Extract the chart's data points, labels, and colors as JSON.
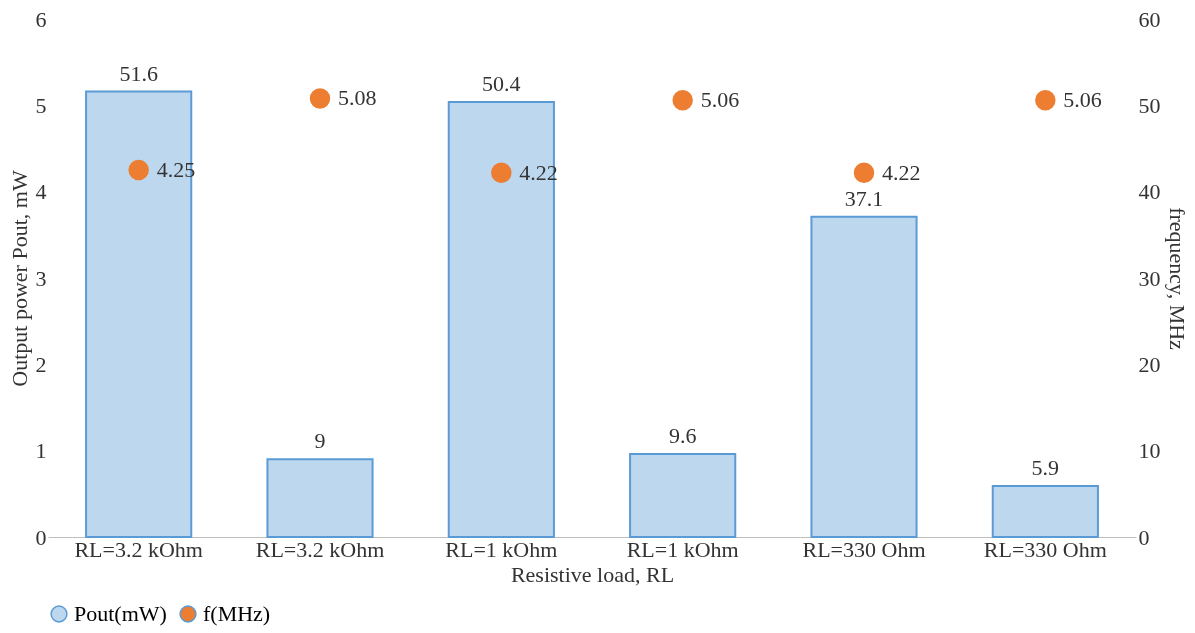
{
  "chart_data": {
    "type": "bar",
    "xlabel": "Resistive load, RL",
    "ylabel": "Output power Pout, mW",
    "y2label": "frequency, MHz",
    "categories": [
      "RL=3.2 kOhm",
      "RL=3.2 kOhm",
      "RL=1 kOhm",
      "RL=1 kOhm",
      "RL=330 Ohm",
      "RL=330 Ohm"
    ],
    "series": [
      {
        "name": "Pout(mW)",
        "axis": "y2",
        "color": "#bdd7ee",
        "values": [
          51.6,
          9,
          50.4,
          9.6,
          37.1,
          5.9
        ]
      },
      {
        "name": "f(MHz)",
        "type": "scatter",
        "color": "#ed7d31",
        "values": [
          4.25,
          5.08,
          4.22,
          5.06,
          4.22,
          5.06
        ]
      }
    ],
    "ylim": [
      0,
      6
    ],
    "yticks": [
      0,
      1,
      2,
      3,
      4,
      5,
      6
    ],
    "y2lim": [
      0,
      60
    ],
    "y2ticks": [
      0,
      10,
      20,
      30,
      40,
      50,
      60
    ],
    "data_labels": true,
    "grid": false,
    "legend": "bottom",
    "marker": "circle"
  }
}
